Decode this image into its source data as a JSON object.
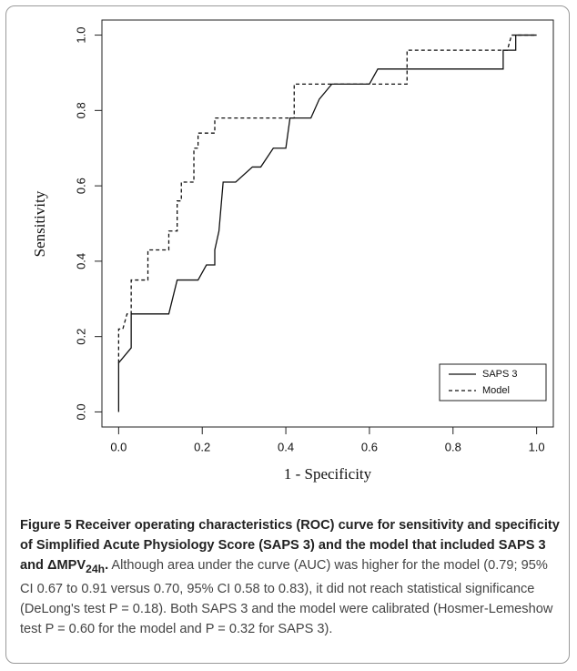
{
  "chart_data": {
    "type": "line",
    "xlabel": "1 - Specificity",
    "ylabel": "Sensitivity",
    "xlim": [
      -0.04,
      1.04
    ],
    "ylim": [
      -0.04,
      1.04
    ],
    "xticks": [
      {
        "value": 0,
        "label": "0.0"
      },
      0.2,
      0.4,
      0.6,
      0.8,
      {
        "value": 1,
        "label": "1.0"
      }
    ],
    "yticks": [
      {
        "value": 0,
        "label": "0.0"
      },
      0.2,
      0.4,
      0.6,
      0.8,
      {
        "value": 1,
        "label": "1.0"
      }
    ],
    "legend": "bottom-right",
    "series": [
      {
        "name": "SAPS 3",
        "color": "#111111",
        "style": "solid",
        "x": [
          0,
          0,
          0.03,
          0.03,
          0.12,
          0.14,
          0.19,
          0.21,
          0.23,
          0.23,
          0.24,
          0.25,
          0.28,
          0.32,
          0.34,
          0.37,
          0.4,
          0.41,
          0.46,
          0.48,
          0.51,
          0.6,
          0.62,
          0.92,
          0.92,
          0.95,
          0.95,
          1.0
        ],
        "values": [
          0,
          0.13,
          0.17,
          0.26,
          0.26,
          0.35,
          0.35,
          0.39,
          0.39,
          0.43,
          0.48,
          0.61,
          0.61,
          0.65,
          0.65,
          0.7,
          0.7,
          0.78,
          0.78,
          0.83,
          0.87,
          0.87,
          0.91,
          0.91,
          0.96,
          0.96,
          1.0,
          1.0
        ]
      },
      {
        "name": "Model",
        "color": "#111111",
        "style": "dashed",
        "x": [
          0,
          0,
          0.01,
          0.02,
          0.03,
          0.03,
          0.07,
          0.07,
          0.12,
          0.12,
          0.14,
          0.14,
          0.15,
          0.15,
          0.18,
          0.18,
          0.19,
          0.19,
          0.23,
          0.23,
          0.25,
          0.42,
          0.42,
          0.69,
          0.69,
          0.93,
          0.94,
          1.0
        ],
        "values": [
          0.13,
          0.22,
          0.22,
          0.26,
          0.26,
          0.35,
          0.35,
          0.43,
          0.43,
          0.48,
          0.48,
          0.56,
          0.56,
          0.61,
          0.61,
          0.7,
          0.7,
          0.74,
          0.74,
          0.78,
          0.78,
          0.78,
          0.87,
          0.87,
          0.96,
          0.96,
          1.0,
          1.0
        ]
      }
    ]
  },
  "caption": {
    "label": "Figure 5",
    "title": "Receiver operating characteristics (ROC) curve for sensitivity and specificity of Simplified Acute Physiology Score (SAPS 3) and the model that included SAPS 3 and ΔMPV",
    "title_sub": "24h",
    "title_end": ".",
    "text": "Although area under the curve (AUC) was higher for the model (0.79; 95% CI 0.67 to 0.91 versus 0.70, 95% CI 0.58 to 0.83), it did not reach statistical significance (DeLong's test P = 0.18). Both SAPS 3 and the model were calibrated (Hosmer-Lemeshow test P = 0.60 for the model and P = 0.32 for SAPS 3)."
  }
}
